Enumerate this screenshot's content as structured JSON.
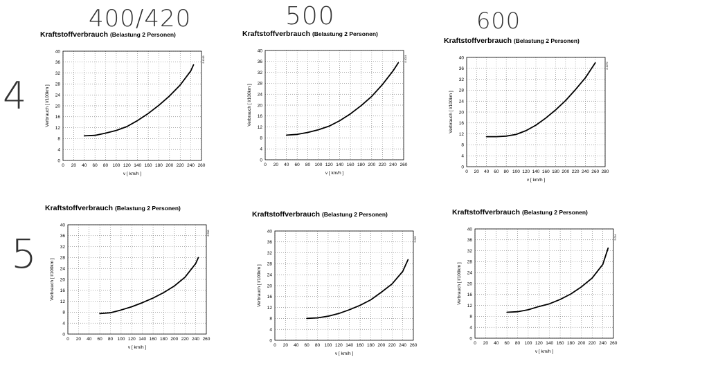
{
  "annotations": {
    "top": [
      "400/420",
      "500",
      "600"
    ],
    "left": [
      "4",
      "5"
    ]
  },
  "colors": {
    "grid": "#555555",
    "curve": "#000000",
    "background": "#ffffff"
  },
  "chart_data": [
    {
      "type": "line",
      "title": "Kraftstoffverbrauch",
      "subtitle": "(Belastung 2 Personen)",
      "xlabel": "v  [ km/h ]",
      "ylabel": "Verbrauch  [ l/100km ]",
      "xlim": [
        0,
        260
      ],
      "ylim": [
        0,
        40
      ],
      "x_ticks": [
        0,
        20,
        40,
        60,
        80,
        100,
        120,
        140,
        160,
        180,
        200,
        220,
        240,
        260
      ],
      "y_ticks": [
        0,
        4,
        8,
        12,
        16,
        20,
        24,
        28,
        32,
        36,
        40
      ],
      "corner_code": "8 4018",
      "series": [
        {
          "name": "Verbrauch",
          "x": [
            40,
            60,
            80,
            100,
            120,
            140,
            160,
            180,
            200,
            220,
            240,
            245
          ],
          "y": [
            9,
            9.2,
            10,
            11,
            12.4,
            14.6,
            17.2,
            20.2,
            23.6,
            27.6,
            32.8,
            35
          ]
        }
      ]
    },
    {
      "type": "line",
      "title": "Kraftstoffverbrauch",
      "subtitle": "(Belastung 2 Personen)",
      "xlabel": "v  [ km/h ]",
      "ylabel": "Verbrauch  [ l/100km ]",
      "xlim": [
        0,
        260
      ],
      "ylim": [
        0,
        40
      ],
      "x_ticks": [
        0,
        20,
        40,
        60,
        80,
        100,
        120,
        140,
        160,
        180,
        200,
        220,
        240,
        260
      ],
      "y_ticks": [
        0,
        4,
        8,
        12,
        16,
        20,
        24,
        28,
        32,
        36,
        40
      ],
      "corner_code": "8 4024",
      "series": [
        {
          "name": "Verbrauch",
          "x": [
            40,
            60,
            80,
            100,
            120,
            140,
            160,
            180,
            200,
            220,
            240,
            250
          ],
          "y": [
            9,
            9.3,
            10,
            11,
            12.3,
            14.3,
            16.8,
            19.8,
            23.2,
            27.5,
            32.5,
            35.5
          ]
        }
      ]
    },
    {
      "type": "line",
      "title": "Kraftstoffverbrauch",
      "subtitle": "(Belastung 2 Personen)",
      "xlabel": "v  [ km/h ]",
      "ylabel": "Verbrauch  [ l/100km ]",
      "xlim": [
        0,
        280
      ],
      "ylim": [
        0,
        40
      ],
      "x_ticks": [
        0,
        20,
        40,
        60,
        80,
        100,
        120,
        140,
        160,
        180,
        200,
        220,
        240,
        260,
        280
      ],
      "y_ticks": [
        0,
        4,
        8,
        12,
        16,
        20,
        24,
        28,
        32,
        36,
        40
      ],
      "corner_code": "8 4070",
      "series": [
        {
          "name": "Verbrauch",
          "x": [
            40,
            60,
            80,
            100,
            120,
            140,
            160,
            180,
            200,
            220,
            240,
            260
          ],
          "y": [
            11,
            11,
            11.2,
            11.8,
            13.2,
            15.2,
            17.8,
            20.8,
            24.2,
            28.2,
            32.5,
            38
          ]
        }
      ]
    },
    {
      "type": "line",
      "title": "Kraftstoffverbrauch",
      "subtitle": "(Belastung 2 Personen)",
      "xlabel": "v  [ km/h ]",
      "ylabel": "Verbrauch  [ l/100km ]",
      "xlim": [
        0,
        260
      ],
      "ylim": [
        0,
        40
      ],
      "x_ticks": [
        0,
        20,
        40,
        60,
        80,
        100,
        120,
        140,
        160,
        180,
        200,
        220,
        240,
        260
      ],
      "y_ticks": [
        0,
        4,
        8,
        12,
        16,
        20,
        24,
        28,
        32,
        36,
        40
      ],
      "corner_code": "8 598",
      "series": [
        {
          "name": "Verbrauch",
          "x": [
            60,
            80,
            100,
            120,
            140,
            160,
            180,
            200,
            220,
            240,
            245
          ],
          "y": [
            7.5,
            7.8,
            8.8,
            10,
            11.5,
            13.2,
            15.2,
            17.6,
            20.8,
            25.8,
            28
          ]
        }
      ]
    },
    {
      "type": "line",
      "title": "Kraftstoffverbrauch",
      "subtitle": "(Belastung 2 Personen)",
      "xlabel": "v  [ km/h ]",
      "ylabel": "Verbrauch  [ l/100km ]",
      "xlim": [
        0,
        260
      ],
      "ylim": [
        0,
        40
      ],
      "x_ticks": [
        0,
        20,
        40,
        60,
        80,
        100,
        120,
        140,
        160,
        180,
        200,
        220,
        240,
        260
      ],
      "y_ticks": [
        0,
        4,
        8,
        12,
        16,
        20,
        24,
        28,
        32,
        36,
        40
      ],
      "corner_code": "5 025",
      "series": [
        {
          "name": "Verbrauch",
          "x": [
            60,
            80,
            100,
            120,
            140,
            160,
            180,
            200,
            220,
            240,
            250
          ],
          "y": [
            8,
            8.2,
            8.8,
            9.8,
            11.2,
            12.8,
            14.8,
            17.6,
            20.6,
            25.2,
            29.5
          ]
        }
      ]
    },
    {
      "type": "line",
      "title": "Kraftstoffverbrauch",
      "subtitle": "(Belastung 2 Personen)",
      "xlabel": "v  [ km/h ]",
      "ylabel": "Verbrauch  [ l/100km ]",
      "xlim": [
        0,
        260
      ],
      "ylim": [
        0,
        40
      ],
      "x_ticks": [
        0,
        20,
        40,
        60,
        80,
        100,
        120,
        140,
        160,
        180,
        200,
        220,
        240,
        260
      ],
      "y_ticks": [
        0,
        4,
        8,
        12,
        16,
        20,
        24,
        28,
        32,
        36,
        40
      ],
      "corner_code": "5 034",
      "series": [
        {
          "name": "Verbrauch",
          "x": [
            60,
            80,
            100,
            120,
            140,
            160,
            180,
            200,
            220,
            240,
            250
          ],
          "y": [
            9.5,
            9.7,
            10.4,
            11.6,
            12.6,
            14.2,
            16.2,
            18.8,
            22,
            27,
            33
          ]
        }
      ]
    }
  ]
}
